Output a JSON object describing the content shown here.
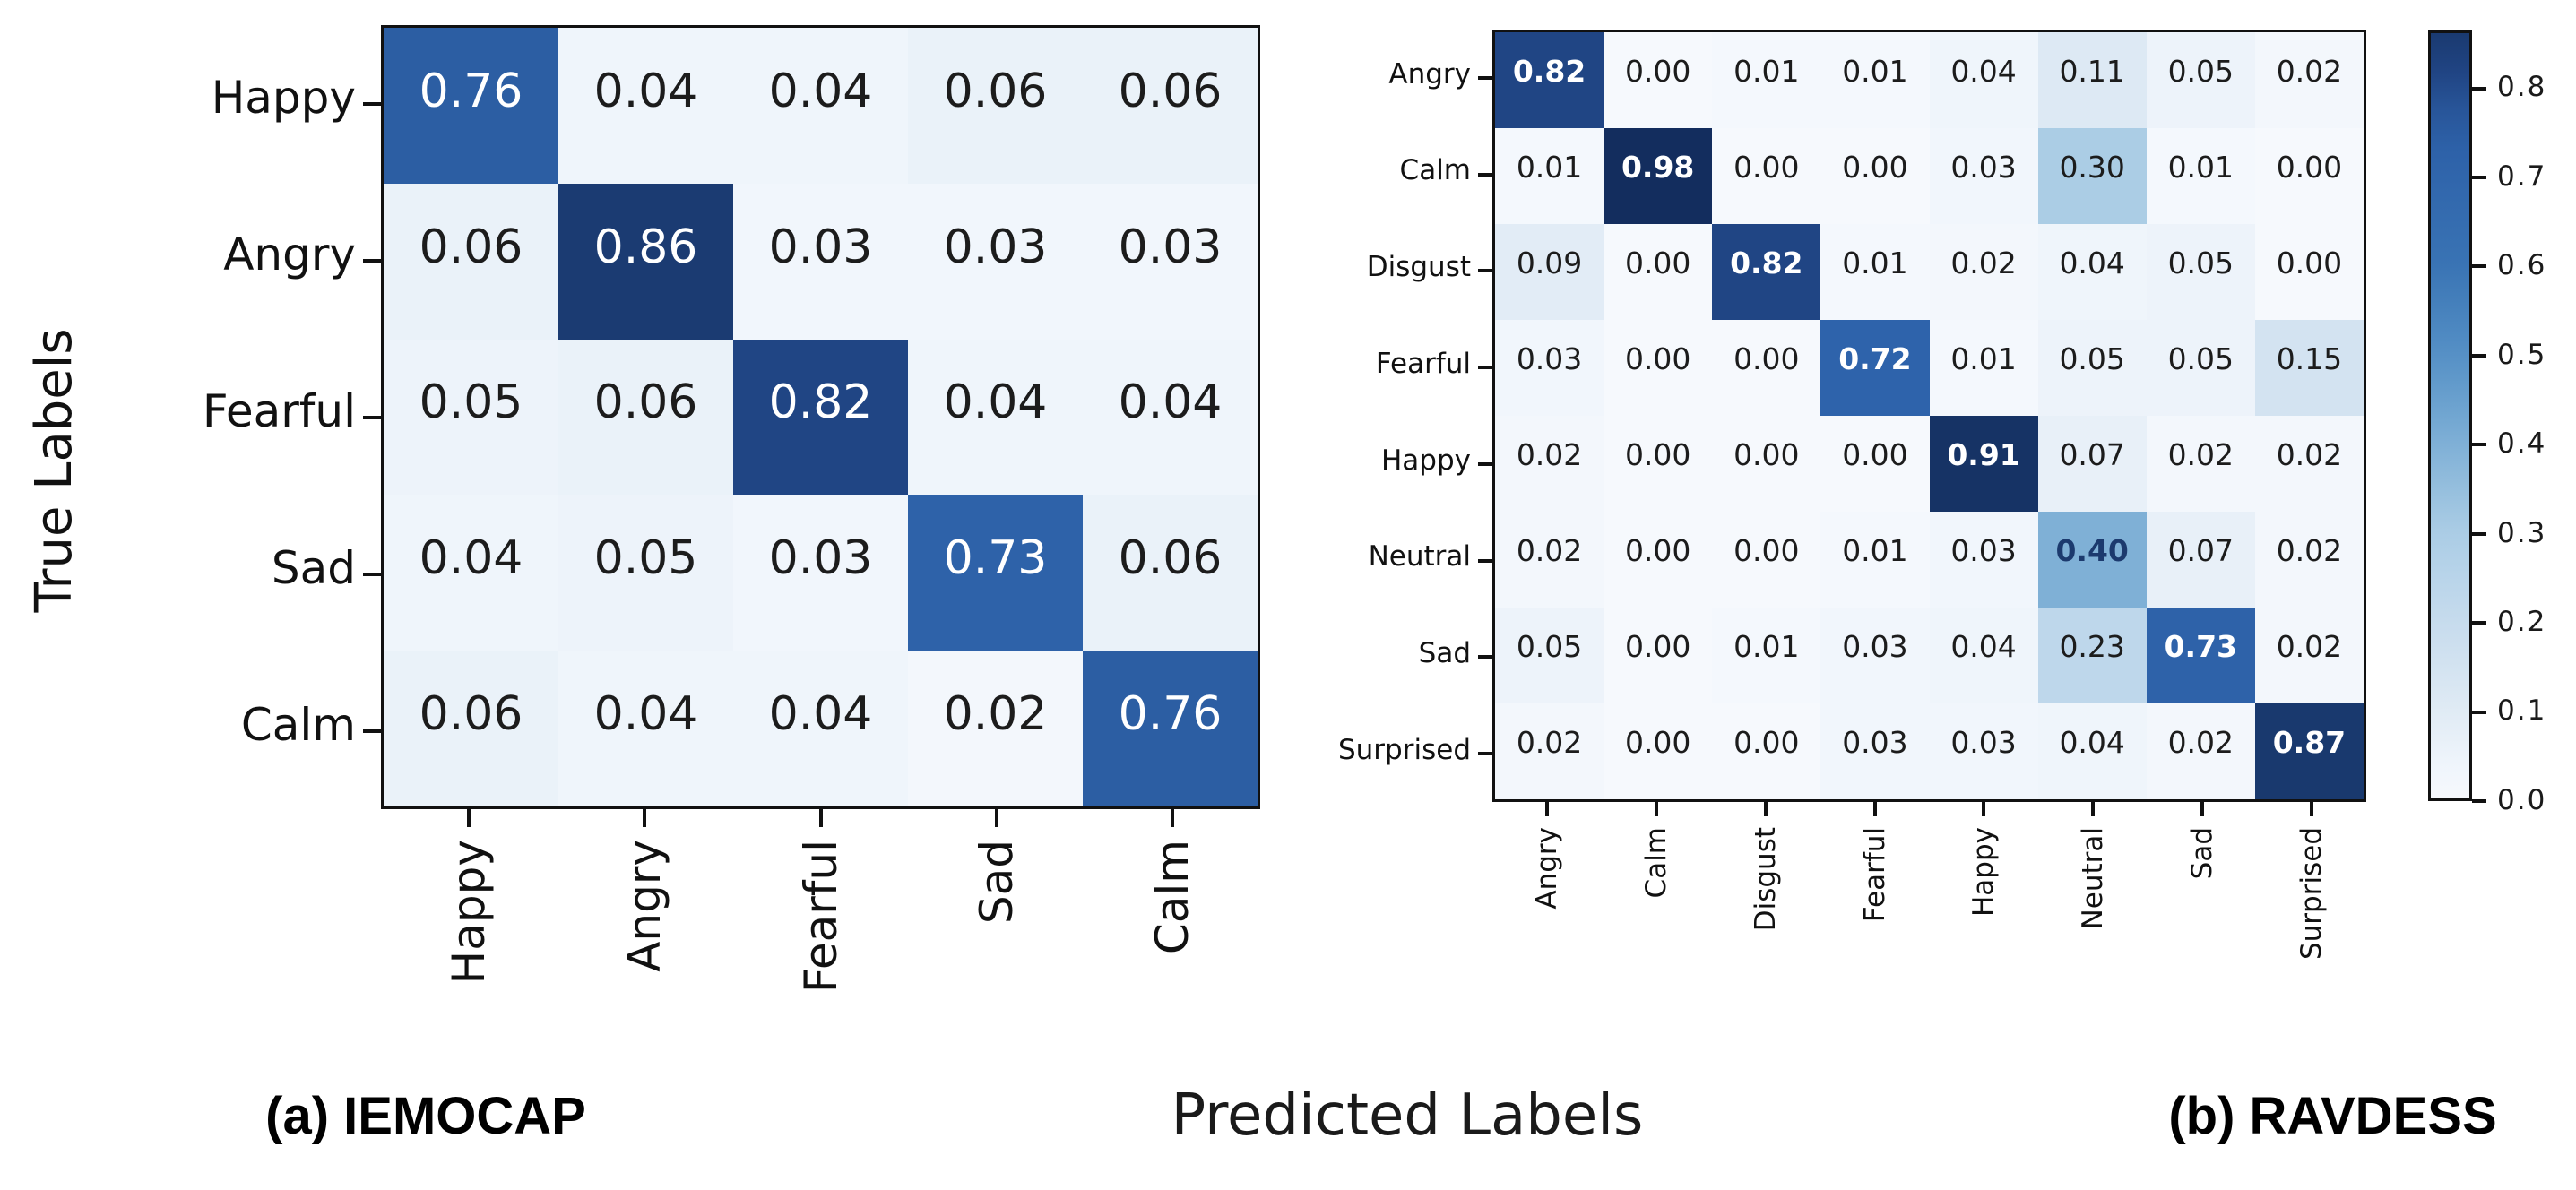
{
  "figure": {
    "x_axis_label": "Predicted Labels",
    "y_axis_label": "True Labels"
  },
  "chart_data": [
    {
      "type": "heatmap",
      "name": "confusion-matrix-iemocap",
      "caption": "(a) IEMOCAP",
      "row_axis_label": "True Labels",
      "col_axis_label": "Predicted Labels",
      "labels": [
        "Happy",
        "Angry",
        "Fearful",
        "Sad",
        "Calm"
      ],
      "matrix": [
        [
          0.76,
          0.04,
          0.04,
          0.06,
          0.06
        ],
        [
          0.06,
          0.86,
          0.03,
          0.03,
          0.03
        ],
        [
          0.05,
          0.06,
          0.82,
          0.04,
          0.04
        ],
        [
          0.04,
          0.05,
          0.03,
          0.73,
          0.06
        ],
        [
          0.06,
          0.04,
          0.04,
          0.02,
          0.76
        ]
      ],
      "bold_diagonal": false,
      "value_format": "2-decimals"
    },
    {
      "type": "heatmap",
      "name": "confusion-matrix-ravdess",
      "caption": "(b) RAVDESS",
      "row_axis_label": "True Labels",
      "col_axis_label": "Predicted Labels",
      "labels": [
        "Angry",
        "Calm",
        "Disgust",
        "Fearful",
        "Happy",
        "Neutral",
        "Sad",
        "Surprised"
      ],
      "matrix": [
        [
          0.82,
          0.0,
          0.01,
          0.01,
          0.04,
          0.11,
          0.05,
          0.02
        ],
        [
          0.01,
          0.98,
          0.0,
          0.0,
          0.03,
          0.3,
          0.01,
          0.0
        ],
        [
          0.09,
          0.0,
          0.82,
          0.01,
          0.02,
          0.04,
          0.05,
          0.0
        ],
        [
          0.03,
          0.0,
          0.0,
          0.72,
          0.01,
          0.05,
          0.05,
          0.15
        ],
        [
          0.02,
          0.0,
          0.0,
          0.0,
          0.91,
          0.07,
          0.02,
          0.02
        ],
        [
          0.02,
          0.0,
          0.0,
          0.01,
          0.03,
          0.4,
          0.07,
          0.02
        ],
        [
          0.05,
          0.0,
          0.01,
          0.03,
          0.04,
          0.23,
          0.73,
          0.02
        ],
        [
          0.02,
          0.0,
          0.0,
          0.03,
          0.03,
          0.04,
          0.02,
          0.87
        ]
      ],
      "bold_diagonal": true,
      "value_format": "2-decimals"
    }
  ],
  "colorbar": {
    "tick_labels": [
      "0.8",
      "0.7",
      "0.6",
      "0.5",
      "0.4",
      "0.3",
      "0.2",
      "0.1",
      "0.0"
    ],
    "vmin": 0.0,
    "vmax": 0.865,
    "colormap": "Blues",
    "orientation": "vertical"
  },
  "colors": {
    "heat_min": "#f6f9fd",
    "heat_mid": "#2e63ab",
    "heat_max": "#122c5c",
    "text_on_dark": "#ffffff",
    "text_mid_navy": "#1c3a6e",
    "text_on_light": "#1c1c1c",
    "axis": "#111111"
  }
}
